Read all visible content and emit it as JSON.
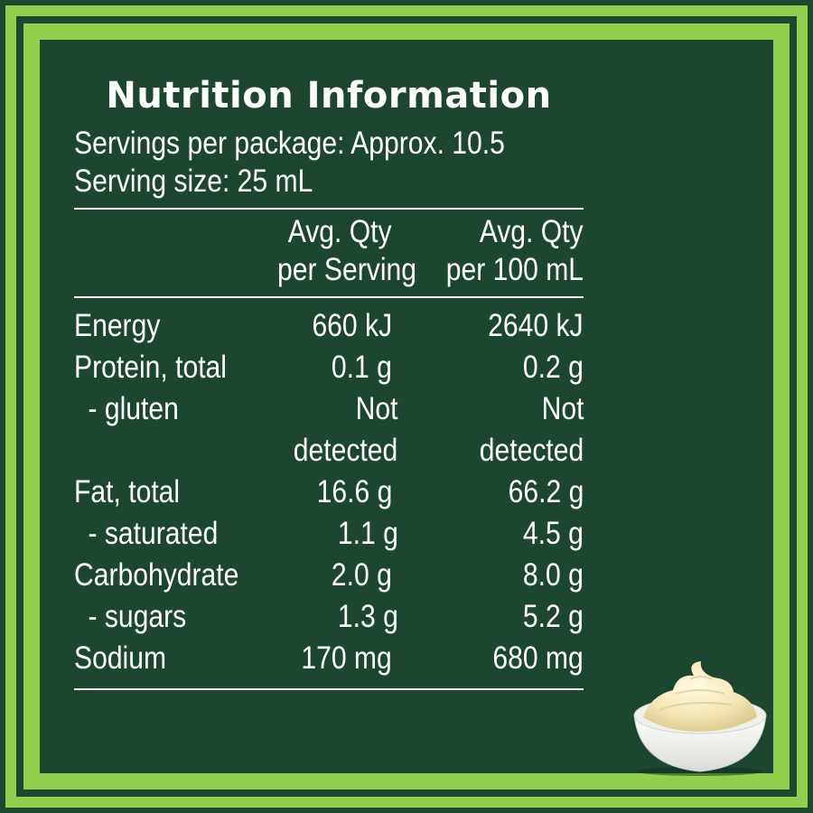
{
  "title": "Nutrition Information",
  "servings_per_package": "Servings per package: Approx. 10.5",
  "serving_size": "Serving size: 25 mL",
  "columns": {
    "serving_line1": "Avg. Qty",
    "serving_line2": "per Serving",
    "per100_line1": "Avg. Qty",
    "per100_line2": "per 100 mL"
  },
  "rows": [
    {
      "name": "Energy",
      "serving": "660 kJ",
      "per100": "2640 kJ"
    },
    {
      "name": "Protein, total",
      "serving": "0.1 g",
      "per100": "0.2 g"
    },
    {
      "name": "- gluten",
      "serving_line1": "Not",
      "serving_line2": "detected",
      "per100_line1": "Not",
      "per100_line2": "detected"
    },
    {
      "name": "Fat, total",
      "serving": "16.6 g",
      "per100": "66.2 g"
    },
    {
      "name": "- saturated",
      "serving": "1.1 g",
      "per100": "4.5 g"
    },
    {
      "name": "Carbohydrate",
      "serving": "2.0 g",
      "per100": "8.0 g"
    },
    {
      "name": "- sugars",
      "serving": "1.3 g",
      "per100": "5.2 g"
    },
    {
      "name": "Sodium",
      "serving": "170 mg",
      "per100": "680 mg"
    }
  ],
  "colors": {
    "background_dark": "#1c4630",
    "border_green": "#8fd14f",
    "text": "#ffffff"
  },
  "icons": {
    "bowl": "mayonnaise-bowl-icon"
  }
}
